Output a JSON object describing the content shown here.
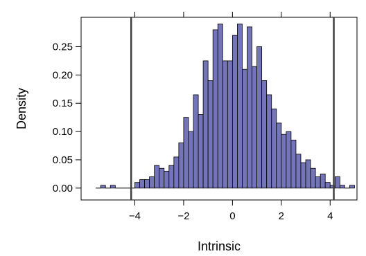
{
  "chart_data": {
    "type": "bar",
    "title": "",
    "xlabel": "Intrinsic",
    "ylabel": "Density",
    "xlim": [
      -6.2,
      5.1
    ],
    "ylim": [
      -0.021,
      0.302
    ],
    "x_ticks": [
      -4,
      -2,
      0,
      2,
      4
    ],
    "x_tick_labels": [
      "−4",
      "−2",
      "0",
      "2",
      "4"
    ],
    "y_ticks": [
      0.0,
      0.05,
      0.1,
      0.15,
      0.2,
      0.25
    ],
    "y_tick_labels": [
      "0.00",
      "0.05",
      "0.10",
      "0.15",
      "0.20",
      "0.25"
    ],
    "grid": false,
    "legend": "none",
    "bin_width": 0.2,
    "bin_starts": [
      -5.6,
      -5.4,
      -5.2,
      -5.0,
      -4.8,
      -4.6,
      -4.4,
      -4.2,
      -4.0,
      -3.8,
      -3.6,
      -3.4,
      -3.2,
      -3.0,
      -2.8,
      -2.6,
      -2.4,
      -2.2,
      -2.0,
      -1.8,
      -1.6,
      -1.4,
      -1.2,
      -1.0,
      -0.8,
      -0.6,
      -0.4,
      -0.2,
      0.0,
      0.2,
      0.4,
      0.6,
      0.8,
      1.0,
      1.2,
      1.4,
      1.6,
      1.8,
      2.0,
      2.2,
      2.4,
      2.6,
      2.8,
      3.0,
      3.2,
      3.4,
      3.6,
      3.8,
      4.0,
      4.2,
      4.4,
      4.6,
      4.8
    ],
    "values": [
      0.0,
      0.005,
      0.0,
      0.005,
      0.0,
      0.0,
      0.0,
      0.0,
      0.01,
      0.015,
      0.015,
      0.02,
      0.04,
      0.035,
      0.03,
      0.04,
      0.055,
      0.08,
      0.125,
      0.1,
      0.165,
      0.13,
      0.225,
      0.19,
      0.28,
      0.29,
      0.225,
      0.225,
      0.27,
      0.29,
      0.21,
      0.285,
      0.215,
      0.25,
      0.19,
      0.165,
      0.14,
      0.115,
      0.095,
      0.1,
      0.085,
      0.06,
      0.045,
      0.05,
      0.035,
      0.02,
      0.025,
      0.01,
      0.005,
      0.02,
      0.005,
      0.0,
      0.005
    ],
    "vlines": [
      -4.15,
      4.15
    ],
    "bar_color": "#7474b8",
    "bar_edge_color": "#000000",
    "vline_color": "#404040"
  }
}
